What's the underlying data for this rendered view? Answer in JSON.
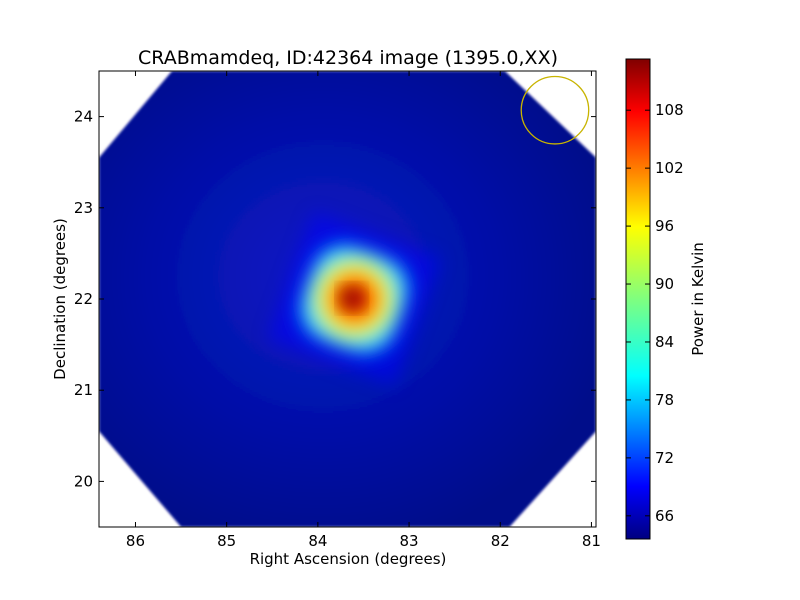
{
  "chart_data": {
    "type": "heatmap",
    "title": "CRABmamdeq, ID:42364 image (1395.0,XX)",
    "xlabel": "Right Ascension (degrees)",
    "ylabel": "Declination (degrees)",
    "colorbar_label": "Power in Kelvin",
    "colormap": "jet",
    "xlim": [
      86.4,
      80.95
    ],
    "ylim": [
      19.5,
      24.5
    ],
    "x_ticks": [
      86,
      85,
      84,
      83,
      82,
      81
    ],
    "y_ticks": [
      20,
      21,
      22,
      23,
      24
    ],
    "colorbar_range": [
      63.6,
      113.3
    ],
    "colorbar_ticks": [
      66,
      72,
      78,
      84,
      90,
      96,
      102,
      108
    ],
    "background_value": 65,
    "peak": {
      "ra": 83.63,
      "dec": 22.01,
      "value": 113
    },
    "source_square": {
      "center_ra": 83.6,
      "center_dec": 22.0,
      "half_width_deg": 0.55,
      "rotation_deg": 20
    },
    "coverage_octagon_deg": [
      [
        85.6,
        24.5
      ],
      [
        81.95,
        24.5
      ],
      [
        80.95,
        23.55
      ],
      [
        80.95,
        20.55
      ],
      [
        81.9,
        19.5
      ],
      [
        85.5,
        19.5
      ],
      [
        86.4,
        20.55
      ],
      [
        86.4,
        23.55
      ]
    ],
    "beam_circle": {
      "ra": 81.4,
      "dec": 24.07,
      "radius_deg": 0.37,
      "color": "#c8b400"
    },
    "grid": false
  }
}
